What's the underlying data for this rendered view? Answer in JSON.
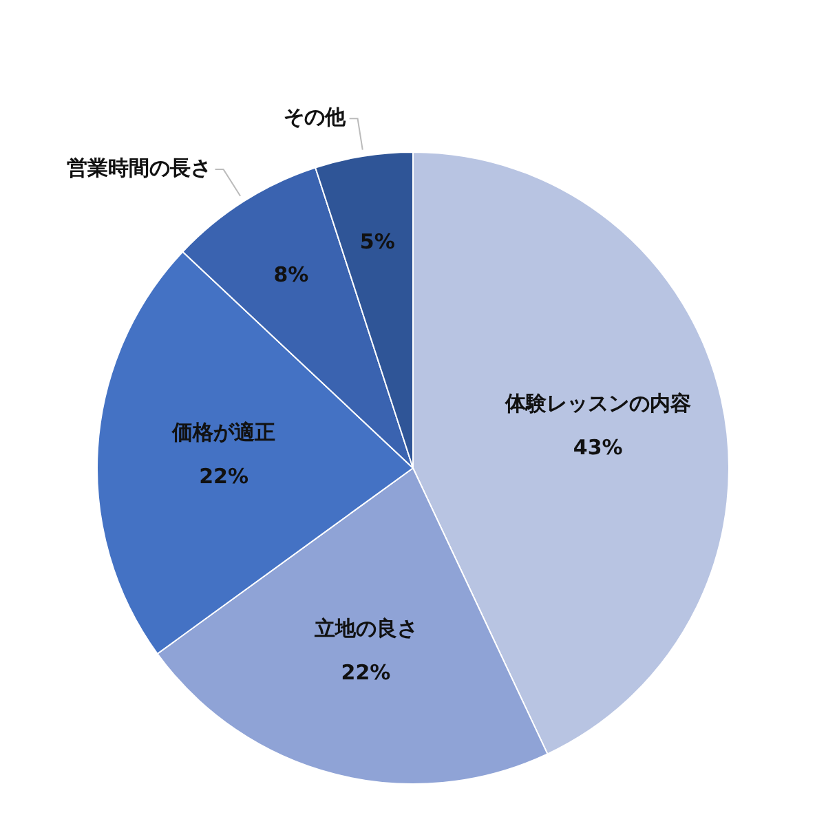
{
  "chart_data": {
    "type": "pie",
    "categories": [
      "体験レッスンの内容",
      "立地の良さ",
      "価格が適正",
      "営業時間の長さ",
      "その他"
    ],
    "values": [
      43,
      22,
      22,
      8,
      5
    ],
    "colors": [
      "#b8c4e2",
      "#8fa3d6",
      "#4472c4",
      "#3a63b0",
      "#2f5597"
    ],
    "value_labels": [
      "43%",
      "22%",
      "22%",
      "8%",
      "5%"
    ],
    "legend": false
  }
}
